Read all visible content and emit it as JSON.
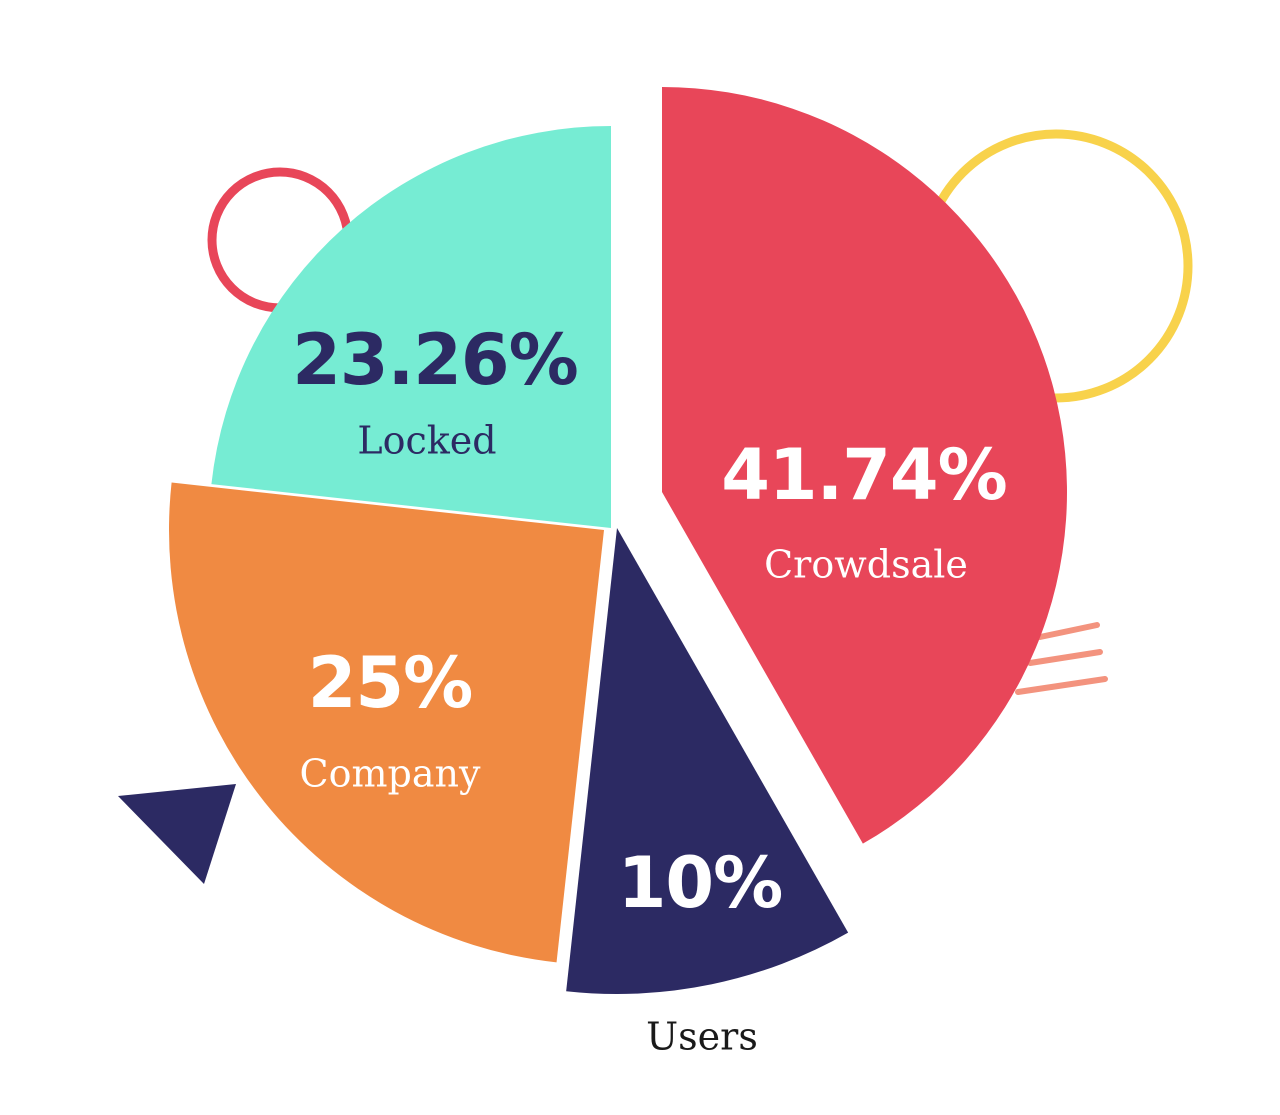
{
  "chart_data": {
    "type": "pie",
    "title": "",
    "slices": [
      {
        "label": "Crowdsale",
        "value": 41.74,
        "display": "41.74%",
        "color": "#E84659",
        "text_color": "#FFFFFF"
      },
      {
        "label": "Users",
        "value": 10,
        "display": "10%",
        "color": "#2C2A63",
        "text_color": "#FFFFFF"
      },
      {
        "label": "Company",
        "value": 25,
        "display": "25%",
        "color": "#F08A42",
        "text_color": "#FFFFFF"
      },
      {
        "label": "Locked",
        "value": 23.26,
        "display": "23.26%",
        "color": "#76ECD3",
        "text_color": "#2C2A63"
      }
    ],
    "legend": "none",
    "exploded": true
  },
  "decorations": {
    "yellow_ring_color": "#F8D24B",
    "red_ring_color": "#E84659",
    "stripe_color": "#F3937E",
    "triangle_color": "#2C2A63"
  }
}
